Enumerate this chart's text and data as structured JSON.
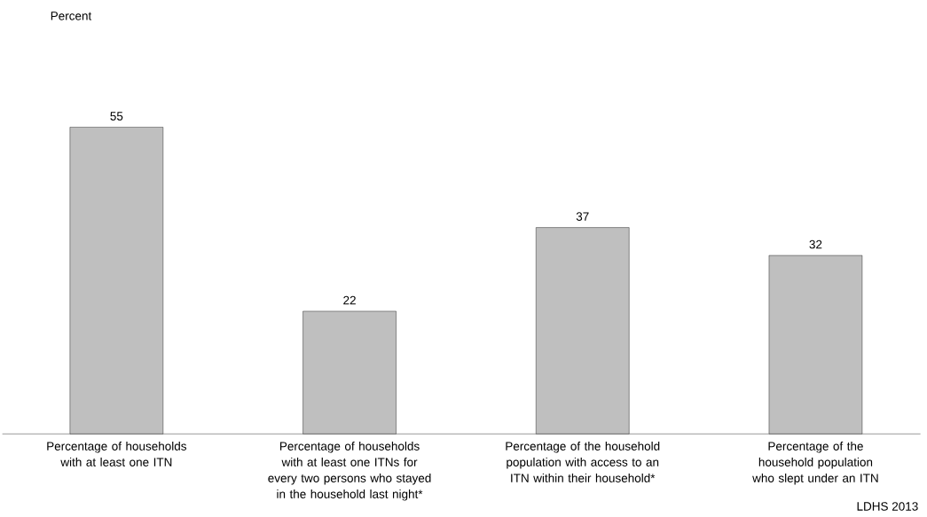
{
  "chart_data": {
    "type": "bar",
    "categories": [
      "Percentage of households with at least one ITN",
      "Percentage of households with at least one ITNs for every two persons who stayed in the household last night*",
      "Percentage of the household population with access to an ITN within their household*",
      "Percentage of the household population who slept under an ITN"
    ],
    "values": [
      55,
      22,
      37,
      32
    ],
    "color": "#bfbfbf",
    "data_labels": true,
    "tick_labels": "x",
    "annotations": [
      "Percent",
      "LDHS 2013"
    ]
  }
}
